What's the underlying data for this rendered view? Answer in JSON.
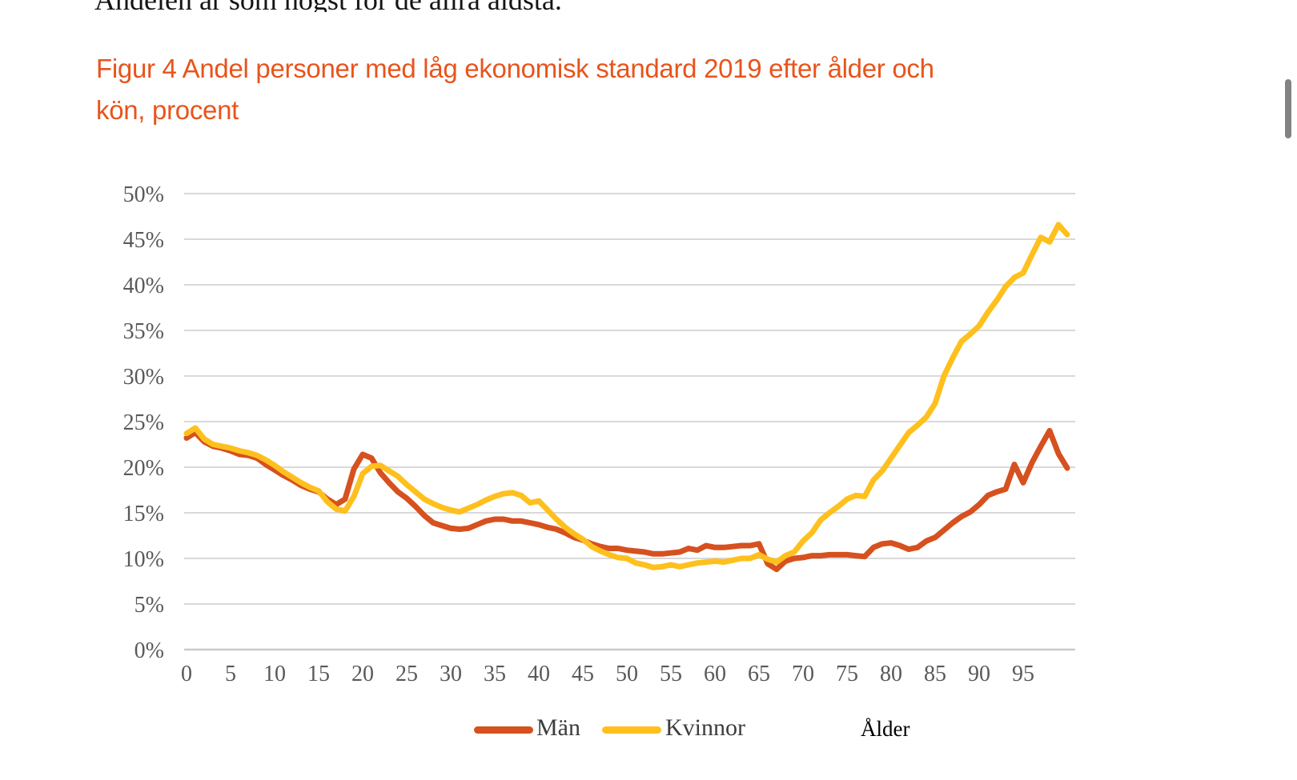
{
  "page": {
    "top_text": "Andelen är som högst för de allra äldsta."
  },
  "figure": {
    "title_line1": "Figur 4 Andel personer med låg ekonomisk standard 2019 efter ålder och",
    "title_line2": "kön, procent",
    "title_color": "#E8541C"
  },
  "chart_data": {
    "type": "line",
    "title": "Figur 4 Andel personer med låg ekonomisk standard 2019 efter ålder och kön, procent",
    "xlabel": "Ålder",
    "ylabel": "",
    "xlim": [
      0,
      100
    ],
    "ylim": [
      0,
      50
    ],
    "grid": true,
    "legend_position": "bottom",
    "gridline_color": "#d9d9d9",
    "tick_label_color": "#595959",
    "x_ticks": [
      0,
      5,
      10,
      15,
      20,
      25,
      30,
      35,
      40,
      45,
      50,
      55,
      60,
      65,
      70,
      75,
      80,
      85,
      90,
      95
    ],
    "y_tick_labels": [
      "0%",
      "5%",
      "10%",
      "15%",
      "20%",
      "25%",
      "30%",
      "35%",
      "40%",
      "45%",
      "50%"
    ],
    "x_unit": "age in years, one data point per year of age 0-100",
    "series": [
      {
        "name": "Män",
        "color": "#D6511F",
        "values": [
          23.2,
          23.8,
          22.8,
          22.3,
          22.1,
          21.8,
          21.4,
          21.3,
          21.0,
          20.3,
          19.7,
          19.1,
          18.6,
          18.0,
          17.6,
          17.3,
          16.5,
          15.9,
          16.5,
          19.8,
          21.4,
          21.0,
          19.4,
          18.3,
          17.3,
          16.6,
          15.7,
          14.7,
          13.9,
          13.6,
          13.3,
          13.2,
          13.3,
          13.7,
          14.1,
          14.3,
          14.3,
          14.1,
          14.1,
          13.9,
          13.7,
          13.4,
          13.2,
          12.8,
          12.3,
          12.0,
          11.6,
          11.3,
          11.1,
          11.1,
          10.9,
          10.8,
          10.7,
          10.5,
          10.5,
          10.6,
          10.7,
          11.1,
          10.9,
          11.4,
          11.2,
          11.2,
          11.3,
          11.4,
          11.4,
          11.6,
          9.4,
          8.8,
          9.7,
          10.0,
          10.1,
          10.3,
          10.3,
          10.4,
          10.4,
          10.4,
          10.3,
          10.2,
          11.2,
          11.6,
          11.7,
          11.4,
          11.0,
          11.2,
          11.9,
          12.3,
          13.1,
          13.9,
          14.6,
          15.1,
          15.9,
          16.9,
          17.3,
          17.6,
          20.3,
          18.3,
          20.5,
          22.3,
          24.0,
          21.5,
          19.9
        ]
      },
      {
        "name": "Kvinnor",
        "color": "#FFC01E",
        "values": [
          23.7,
          24.3,
          23.1,
          22.5,
          22.3,
          22.1,
          21.8,
          21.6,
          21.3,
          20.8,
          20.2,
          19.5,
          18.9,
          18.3,
          17.8,
          17.4,
          16.2,
          15.4,
          15.2,
          16.8,
          19.3,
          20.1,
          20.2,
          19.6,
          19.0,
          18.1,
          17.3,
          16.5,
          16.0,
          15.6,
          15.3,
          15.1,
          15.5,
          15.9,
          16.4,
          16.8,
          17.1,
          17.2,
          16.9,
          16.1,
          16.3,
          15.3,
          14.3,
          13.4,
          12.7,
          12.1,
          11.3,
          10.8,
          10.4,
          10.1,
          10.0,
          9.5,
          9.3,
          9.0,
          9.1,
          9.3,
          9.1,
          9.3,
          9.5,
          9.6,
          9.7,
          9.6,
          9.8,
          10.0,
          10.0,
          10.4,
          9.9,
          9.6,
          10.3,
          10.7,
          11.9,
          12.8,
          14.2,
          15.0,
          15.7,
          16.5,
          16.9,
          16.8,
          18.6,
          19.6,
          21.0,
          22.4,
          23.8,
          24.6,
          25.5,
          27.0,
          30.0,
          32.0,
          33.8,
          34.6,
          35.5,
          37.0,
          38.3,
          39.8,
          40.8,
          41.3,
          43.3,
          45.2,
          44.7,
          46.6,
          45.5
        ]
      }
    ]
  }
}
